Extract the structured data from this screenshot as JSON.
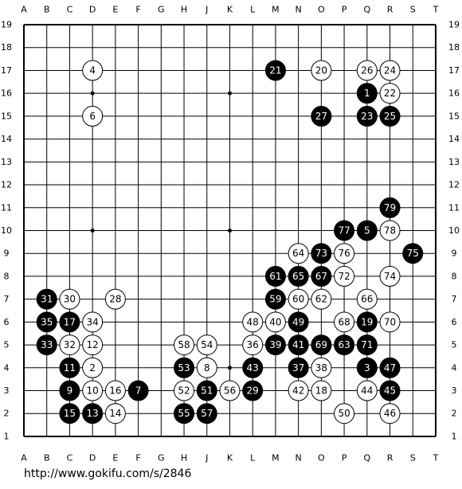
{
  "board": {
    "columns": [
      "A",
      "B",
      "C",
      "D",
      "E",
      "F",
      "G",
      "H",
      "J",
      "K",
      "L",
      "M",
      "N",
      "O",
      "P",
      "Q",
      "R",
      "S",
      "T"
    ],
    "rows": [
      19,
      18,
      17,
      16,
      15,
      14,
      13,
      12,
      11,
      10,
      9,
      8,
      7,
      6,
      5,
      4,
      3,
      2,
      1
    ],
    "moves": [
      {
        "move": 1,
        "color": "black",
        "col": "Q",
        "row": 16
      },
      {
        "move": 2,
        "color": "white",
        "col": "D",
        "row": 4
      },
      {
        "move": 3,
        "color": "black",
        "col": "Q",
        "row": 4
      },
      {
        "move": 4,
        "color": "white",
        "col": "D",
        "row": 17
      },
      {
        "move": 5,
        "color": "black",
        "col": "Q",
        "row": 10
      },
      {
        "move": 6,
        "color": "white",
        "col": "D",
        "row": 15
      },
      {
        "move": 7,
        "color": "black",
        "col": "F",
        "row": 3
      },
      {
        "move": 8,
        "color": "white",
        "col": "J",
        "row": 4
      },
      {
        "move": 9,
        "color": "black",
        "col": "C",
        "row": 3
      },
      {
        "move": 10,
        "color": "white",
        "col": "D",
        "row": 3
      },
      {
        "move": 11,
        "color": "black",
        "col": "C",
        "row": 4
      },
      {
        "move": 12,
        "color": "white",
        "col": "D",
        "row": 5
      },
      {
        "move": 13,
        "color": "black",
        "col": "D",
        "row": 2
      },
      {
        "move": 14,
        "color": "white",
        "col": "E",
        "row": 2
      },
      {
        "move": 15,
        "color": "black",
        "col": "C",
        "row": 2
      },
      {
        "move": 16,
        "color": "white",
        "col": "E",
        "row": 3
      },
      {
        "move": 17,
        "color": "black",
        "col": "C",
        "row": 6
      },
      {
        "move": 18,
        "color": "white",
        "col": "O",
        "row": 3
      },
      {
        "move": 19,
        "color": "black",
        "col": "Q",
        "row": 6
      },
      {
        "move": 20,
        "color": "white",
        "col": "O",
        "row": 17
      },
      {
        "move": 21,
        "color": "black",
        "col": "M",
        "row": 17
      },
      {
        "move": 22,
        "color": "white",
        "col": "R",
        "row": 16
      },
      {
        "move": 23,
        "color": "black",
        "col": "Q",
        "row": 15
      },
      {
        "move": 24,
        "color": "white",
        "col": "R",
        "row": 17
      },
      {
        "move": 25,
        "color": "black",
        "col": "R",
        "row": 15
      },
      {
        "move": 26,
        "color": "white",
        "col": "Q",
        "row": 17
      },
      {
        "move": 27,
        "color": "black",
        "col": "O",
        "row": 15
      },
      {
        "move": 28,
        "color": "white",
        "col": "E",
        "row": 7
      },
      {
        "move": 29,
        "color": "black",
        "col": "L",
        "row": 3
      },
      {
        "move": 30,
        "color": "white",
        "col": "C",
        "row": 7
      },
      {
        "move": 31,
        "color": "black",
        "col": "B",
        "row": 7
      },
      {
        "move": 32,
        "color": "white",
        "col": "C",
        "row": 5
      },
      {
        "move": 33,
        "color": "black",
        "col": "B",
        "row": 5
      },
      {
        "move": 34,
        "color": "white",
        "col": "D",
        "row": 6
      },
      {
        "move": 35,
        "color": "black",
        "col": "B",
        "row": 6
      },
      {
        "move": 36,
        "color": "white",
        "col": "L",
        "row": 5
      },
      {
        "move": 37,
        "color": "black",
        "col": "N",
        "row": 4
      },
      {
        "move": 38,
        "color": "white",
        "col": "O",
        "row": 4
      },
      {
        "move": 39,
        "color": "black",
        "col": "M",
        "row": 5
      },
      {
        "move": 40,
        "color": "white",
        "col": "M",
        "row": 6
      },
      {
        "move": 41,
        "color": "black",
        "col": "N",
        "row": 5
      },
      {
        "move": 42,
        "color": "white",
        "col": "N",
        "row": 3
      },
      {
        "move": 43,
        "color": "black",
        "col": "L",
        "row": 4
      },
      {
        "move": 44,
        "color": "white",
        "col": "Q",
        "row": 3
      },
      {
        "move": 45,
        "color": "black",
        "col": "R",
        "row": 3
      },
      {
        "move": 46,
        "color": "white",
        "col": "R",
        "row": 2
      },
      {
        "move": 47,
        "color": "black",
        "col": "R",
        "row": 4
      },
      {
        "move": 48,
        "color": "white",
        "col": "L",
        "row": 6
      },
      {
        "move": 49,
        "color": "black",
        "col": "N",
        "row": 6
      },
      {
        "move": 50,
        "color": "white",
        "col": "P",
        "row": 2
      },
      {
        "move": 51,
        "color": "black",
        "col": "J",
        "row": 3
      },
      {
        "move": 52,
        "color": "white",
        "col": "H",
        "row": 3
      },
      {
        "move": 53,
        "color": "black",
        "col": "H",
        "row": 4
      },
      {
        "move": 54,
        "color": "white",
        "col": "J",
        "row": 5
      },
      {
        "move": 55,
        "color": "black",
        "col": "H",
        "row": 2
      },
      {
        "move": 56,
        "color": "white",
        "col": "K",
        "row": 3
      },
      {
        "move": 57,
        "color": "black",
        "col": "J",
        "row": 2
      },
      {
        "move": 58,
        "color": "white",
        "col": "H",
        "row": 5
      },
      {
        "move": 59,
        "color": "black",
        "col": "M",
        "row": 7
      },
      {
        "move": 60,
        "color": "white",
        "col": "N",
        "row": 7
      },
      {
        "move": 61,
        "color": "black",
        "col": "M",
        "row": 8
      },
      {
        "move": 62,
        "color": "white",
        "col": "O",
        "row": 7
      },
      {
        "move": 63,
        "color": "black",
        "col": "P",
        "row": 5
      },
      {
        "move": 64,
        "color": "white",
        "col": "N",
        "row": 9
      },
      {
        "move": 65,
        "color": "black",
        "col": "N",
        "row": 8
      },
      {
        "move": 66,
        "color": "white",
        "col": "Q",
        "row": 7
      },
      {
        "move": 67,
        "color": "black",
        "col": "O",
        "row": 8
      },
      {
        "move": 68,
        "color": "white",
        "col": "P",
        "row": 6
      },
      {
        "move": 69,
        "color": "black",
        "col": "O",
        "row": 5
      },
      {
        "move": 70,
        "color": "white",
        "col": "R",
        "row": 6
      },
      {
        "move": 71,
        "color": "black",
        "col": "Q",
        "row": 5
      },
      {
        "move": 72,
        "color": "white",
        "col": "P",
        "row": 8
      },
      {
        "move": 73,
        "color": "black",
        "col": "O",
        "row": 9
      },
      {
        "move": 74,
        "color": "white",
        "col": "R",
        "row": 8
      },
      {
        "move": 75,
        "color": "black",
        "col": "S",
        "row": 9
      },
      {
        "move": 76,
        "color": "white",
        "col": "P",
        "row": 9
      },
      {
        "move": 77,
        "color": "black",
        "col": "P",
        "row": 10
      },
      {
        "move": 78,
        "color": "white",
        "col": "R",
        "row": 10
      },
      {
        "move": 79,
        "color": "black",
        "col": "R",
        "row": 11
      }
    ]
  },
  "footer": {
    "url": "http://www.gokifu.com/s/2846"
  }
}
